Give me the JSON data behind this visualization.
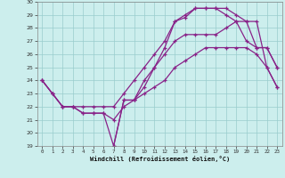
{
  "xlabel": "Windchill (Refroidissement éolien,°C)",
  "bg_color": "#cceeed",
  "line_color": "#882288",
  "grid_color": "#99cccc",
  "xlim": [
    -0.5,
    23.5
  ],
  "ylim": [
    19,
    30
  ],
  "xticks": [
    0,
    1,
    2,
    3,
    4,
    5,
    6,
    7,
    8,
    9,
    10,
    11,
    12,
    13,
    14,
    15,
    16,
    17,
    18,
    19,
    20,
    21,
    22,
    23
  ],
  "yticks": [
    19,
    20,
    21,
    22,
    23,
    24,
    25,
    26,
    27,
    28,
    29,
    30
  ],
  "line1_x": [
    0,
    1,
    2,
    3,
    4,
    5,
    6,
    7,
    8,
    9,
    10,
    11,
    12,
    13,
    14,
    15,
    16,
    17,
    18,
    19,
    20,
    21,
    22,
    23
  ],
  "line1_y": [
    24.0,
    23.0,
    22.0,
    22.0,
    21.5,
    21.5,
    21.5,
    21.0,
    22.0,
    22.5,
    23.0,
    23.5,
    24.0,
    25.0,
    25.5,
    26.0,
    26.5,
    26.5,
    26.5,
    26.5,
    26.5,
    26.0,
    25.0,
    23.5
  ],
  "line2_x": [
    0,
    1,
    2,
    3,
    4,
    5,
    6,
    7,
    8,
    9,
    10,
    11,
    12,
    13,
    14,
    15,
    16,
    17,
    18,
    19,
    20,
    21,
    22,
    23
  ],
  "line2_y": [
    24.0,
    23.0,
    22.0,
    22.0,
    22.0,
    22.0,
    22.0,
    22.0,
    23.0,
    24.0,
    25.0,
    26.0,
    27.0,
    28.5,
    29.0,
    29.5,
    29.5,
    29.5,
    29.5,
    29.0,
    28.5,
    28.5,
    25.0,
    23.5
  ],
  "line3_x": [
    0,
    1,
    2,
    3,
    4,
    5,
    6,
    7,
    8,
    9,
    10,
    11,
    12,
    13,
    14,
    15,
    16,
    17,
    18,
    19,
    20,
    21,
    22,
    23
  ],
  "line3_y": [
    24.0,
    23.0,
    22.0,
    22.0,
    21.5,
    21.5,
    21.5,
    19.0,
    22.5,
    22.5,
    23.5,
    25.0,
    26.5,
    28.5,
    28.8,
    29.5,
    29.5,
    29.5,
    29.0,
    28.5,
    27.0,
    26.5,
    26.5,
    25.0
  ],
  "line4_x": [
    7,
    8,
    9,
    10,
    11,
    12,
    13,
    14,
    15,
    16,
    17,
    18,
    19,
    20,
    21,
    22,
    23
  ],
  "line4_y": [
    19.0,
    22.5,
    22.5,
    24.0,
    25.0,
    26.0,
    27.0,
    27.5,
    27.5,
    27.5,
    27.5,
    28.0,
    28.5,
    28.5,
    26.5,
    26.5,
    25.0
  ]
}
